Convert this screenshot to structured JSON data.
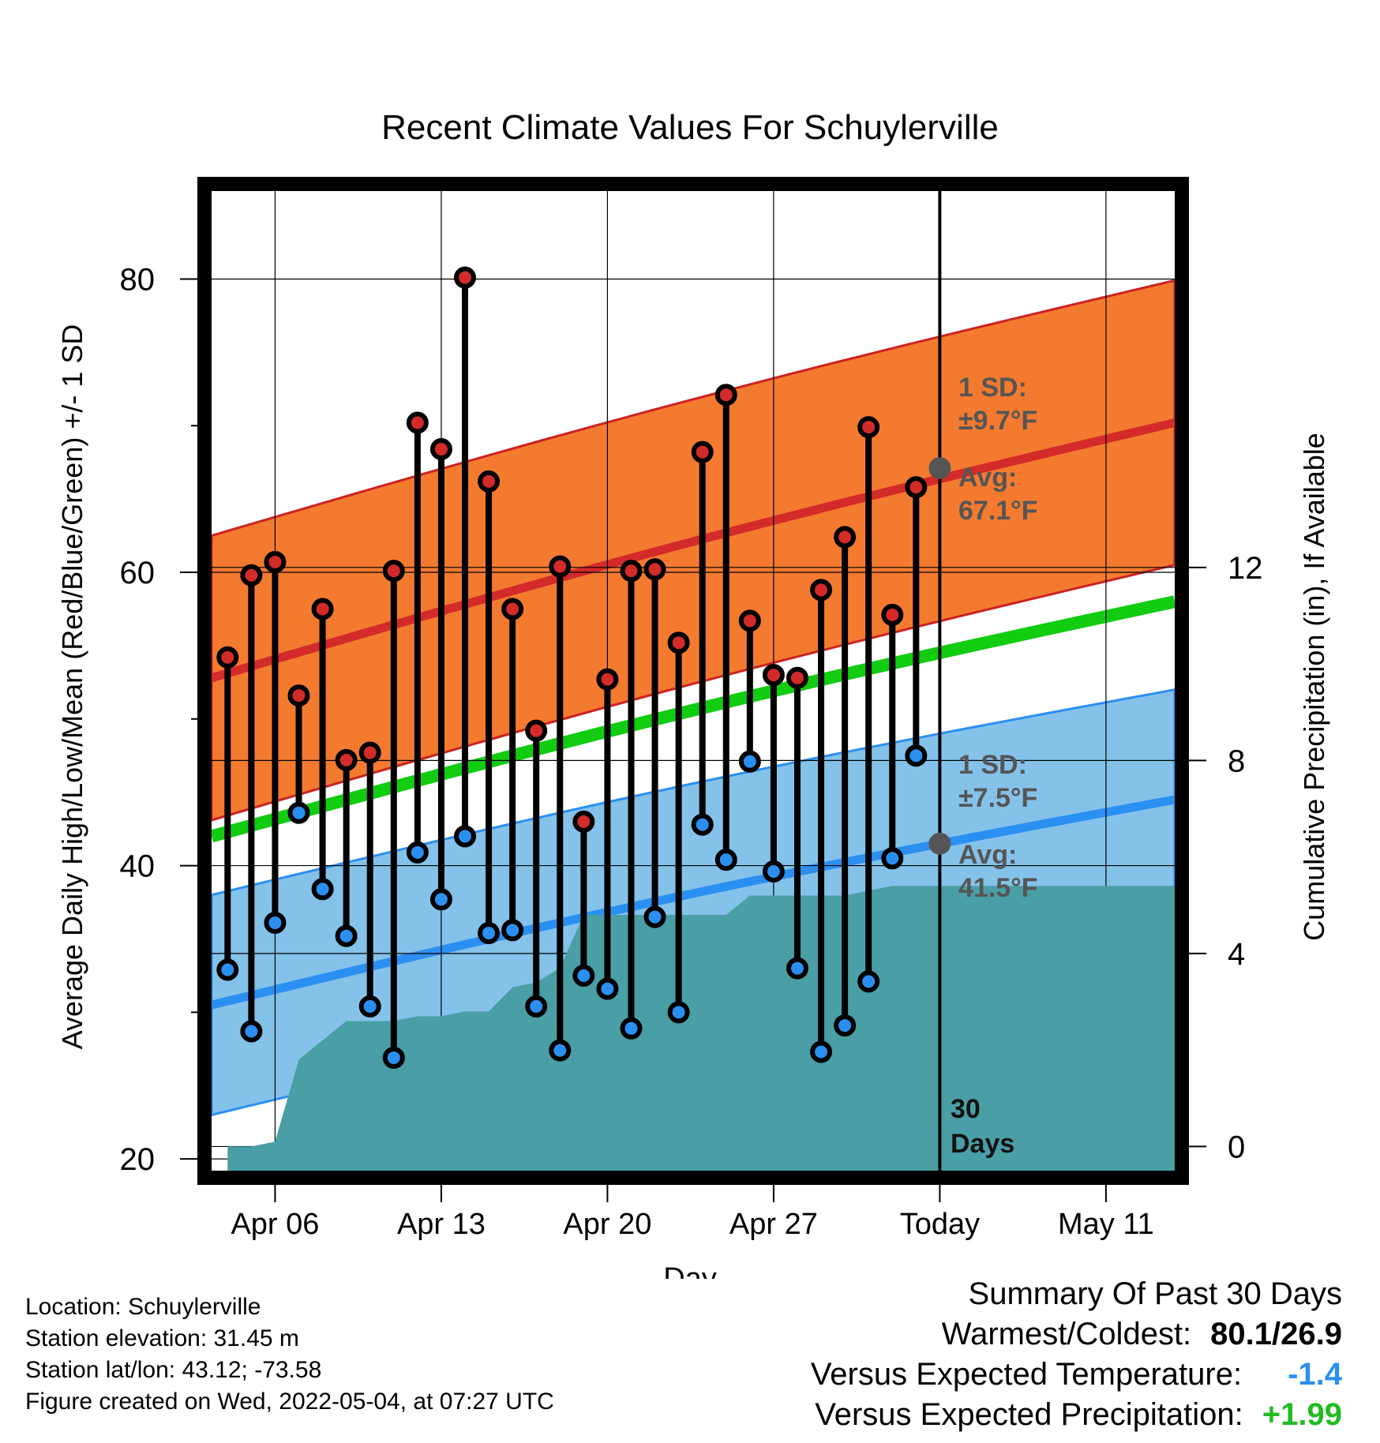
{
  "chart_data": {
    "type": "line",
    "title": "Recent Climate Values For Schuylerville",
    "xlabel": "Day",
    "ylabel": "Average Daily High/Low/Mean (Red/Blue/Green) +/- 1 SD",
    "y2label": "Cumulative Precipitation (in), If Available",
    "xticks": [
      "Apr 06",
      "Apr 13",
      "Apr 20",
      "Apr 27",
      "Today",
      "May 11"
    ],
    "ylim": [
      19.2,
      86
    ],
    "yticks": [
      20,
      40,
      60,
      80
    ],
    "y2lim": [
      -0.5,
      19.8
    ],
    "y2ticks": [
      0,
      4,
      8,
      12
    ],
    "grid": true,
    "days": [
      "Apr 04",
      "Apr 05",
      "Apr 06",
      "Apr 07",
      "Apr 08",
      "Apr 09",
      "Apr 10",
      "Apr 11",
      "Apr 12",
      "Apr 13",
      "Apr 14",
      "Apr 15",
      "Apr 16",
      "Apr 17",
      "Apr 18",
      "Apr 19",
      "Apr 20",
      "Apr 21",
      "Apr 22",
      "Apr 23",
      "Apr 24",
      "Apr 25",
      "Apr 26",
      "Apr 27",
      "Apr 28",
      "Apr 29",
      "Apr 30",
      "May 01",
      "May 02",
      "May 03"
    ],
    "series": [
      {
        "name": "Daily High",
        "color": "#cc2222",
        "values": [
          54.2,
          59.8,
          60.7,
          51.6,
          57.5,
          47.2,
          47.7,
          60.1,
          70.2,
          68.4,
          80.1,
          66.2,
          57.5,
          49.2,
          60.4,
          43.0,
          52.7,
          60.1,
          60.2,
          55.2,
          68.2,
          72.1,
          56.7,
          53.0,
          52.8,
          58.8,
          62.4,
          69.9,
          57.1,
          65.8
        ]
      },
      {
        "name": "Daily Low",
        "color": "#2a8ff0",
        "values": [
          32.9,
          28.7,
          36.1,
          43.6,
          38.4,
          35.2,
          30.4,
          26.9,
          40.9,
          37.7,
          42.0,
          35.4,
          35.6,
          30.4,
          27.4,
          32.5,
          31.6,
          28.9,
          36.5,
          30.0,
          42.8,
          40.4,
          47.1,
          39.6,
          33.0,
          27.3,
          29.1,
          32.1,
          40.5,
          47.5
        ]
      },
      {
        "name": "Cumulative Precipitation",
        "color": "#4a9ea6",
        "axis": "y2",
        "values": [
          0,
          0,
          0.1,
          1.8,
          2.2,
          2.6,
          2.6,
          2.6,
          2.7,
          2.7,
          2.8,
          2.8,
          3.3,
          3.4,
          3.7,
          4.8,
          4.8,
          4.8,
          4.8,
          4.8,
          4.8,
          4.8,
          5.2,
          5.2,
          5.2,
          5.2,
          5.2,
          5.3,
          5.4,
          5.4
        ]
      }
    ],
    "normals": {
      "high_mean": [
        52.8,
        70.2
      ],
      "high_sd": 9.7,
      "low_mean": [
        30.5,
        44.5
      ],
      "low_sd": 7.5,
      "daily_mean": [
        42.0,
        58.0
      ]
    },
    "annotations": {
      "high_sd_label": [
        "1 SD:",
        "±9.7°F"
      ],
      "high_avg_label": [
        "Avg:",
        "67.1°F"
      ],
      "low_sd_label": [
        "1 SD:",
        "±7.5°F"
      ],
      "low_avg_label": [
        "Avg:",
        "41.5°F"
      ],
      "today_avg_high": 67.1,
      "today_avg_low": 41.5,
      "window_label": [
        "30",
        "Days"
      ]
    },
    "colors": {
      "high_band": "#f47a30",
      "high_line": "#d32a2a",
      "low_band": "#84c2ea",
      "low_line": "#2b8ff2",
      "mean_line": "#12cc12",
      "precip": "#4a9ea6",
      "annotation": "#555555"
    }
  },
  "footer": {
    "location": "Location: Schuylerville",
    "elevation": "Station elevation: 31.45 m",
    "latlon": "Station lat/lon: 43.12; -73.58",
    "created": "Figure created on Wed, 2022-05-04, at 07:27 UTC"
  },
  "summary": {
    "heading": "Summary Of Past 30 Days",
    "warm_cold_label": "Warmest/Coldest:",
    "warm_cold_value": "80.1/26.9",
    "temp_label": "Versus Expected Temperature:",
    "temp_value": "-1.4",
    "temp_color": "#2a8ff0",
    "precip_label": "Versus Expected Precipitation:",
    "precip_value": "+1.99",
    "precip_color": "#22bb22"
  }
}
